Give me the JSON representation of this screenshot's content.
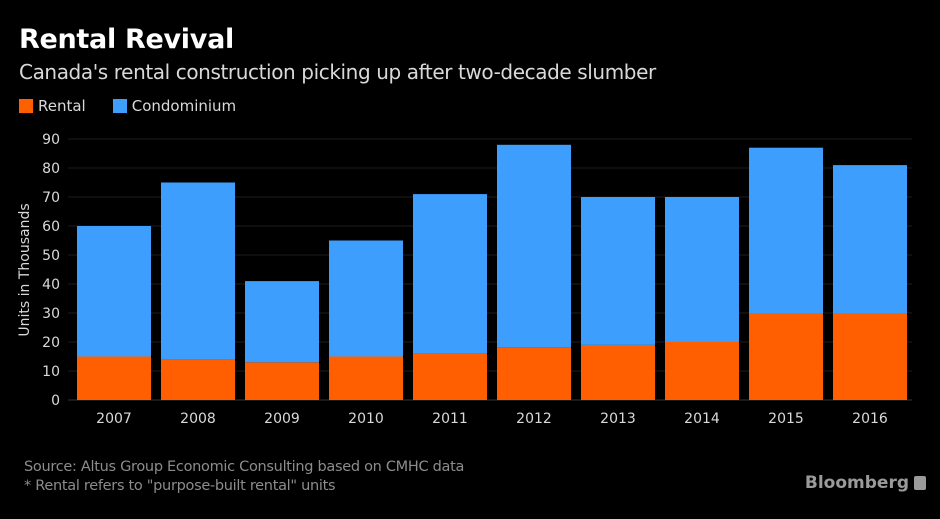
{
  "header": {
    "title": "Rental Revival",
    "subtitle": "Canada's rental construction picking up after two-decade slumber"
  },
  "colors": {
    "rental": "#ff5f00",
    "condominium": "#3d9efd",
    "background": "#000000"
  },
  "chart_data": {
    "type": "bar",
    "stacked": true,
    "title": "Rental Revival",
    "subtitle": "Canada's rental construction picking up after two-decade slumber",
    "xlabel": "",
    "ylabel": "Units in Thousands",
    "ylim": [
      0,
      90
    ],
    "yticks": [
      0,
      10,
      20,
      30,
      40,
      50,
      60,
      70,
      80,
      90
    ],
    "grid": true,
    "legend_position": "top-left",
    "categories": [
      "2007",
      "2008",
      "2009",
      "2010",
      "2011",
      "2012",
      "2013",
      "2014",
      "2015",
      "2016"
    ],
    "series": [
      {
        "name": "Rental",
        "color": "#ff5f00",
        "values": [
          15,
          14,
          13,
          15,
          16,
          18,
          19,
          20,
          30,
          30
        ]
      },
      {
        "name": "Condominium",
        "color": "#3d9efd",
        "values": [
          45,
          61,
          28,
          40,
          55,
          70,
          51,
          50,
          57,
          51
        ]
      }
    ],
    "totals": [
      60,
      75,
      41,
      55,
      71,
      88,
      70,
      70,
      87,
      81
    ]
  },
  "legend": [
    {
      "label": "Rental",
      "color": "#ff5f00"
    },
    {
      "label": "Condominium",
      "color": "#3d9efd"
    }
  ],
  "footer": {
    "source": "Source: Altus Group Economic Consulting based on CMHC data",
    "note": "* Rental refers to \"purpose-built rental\" units",
    "brand": "Bloomberg"
  }
}
